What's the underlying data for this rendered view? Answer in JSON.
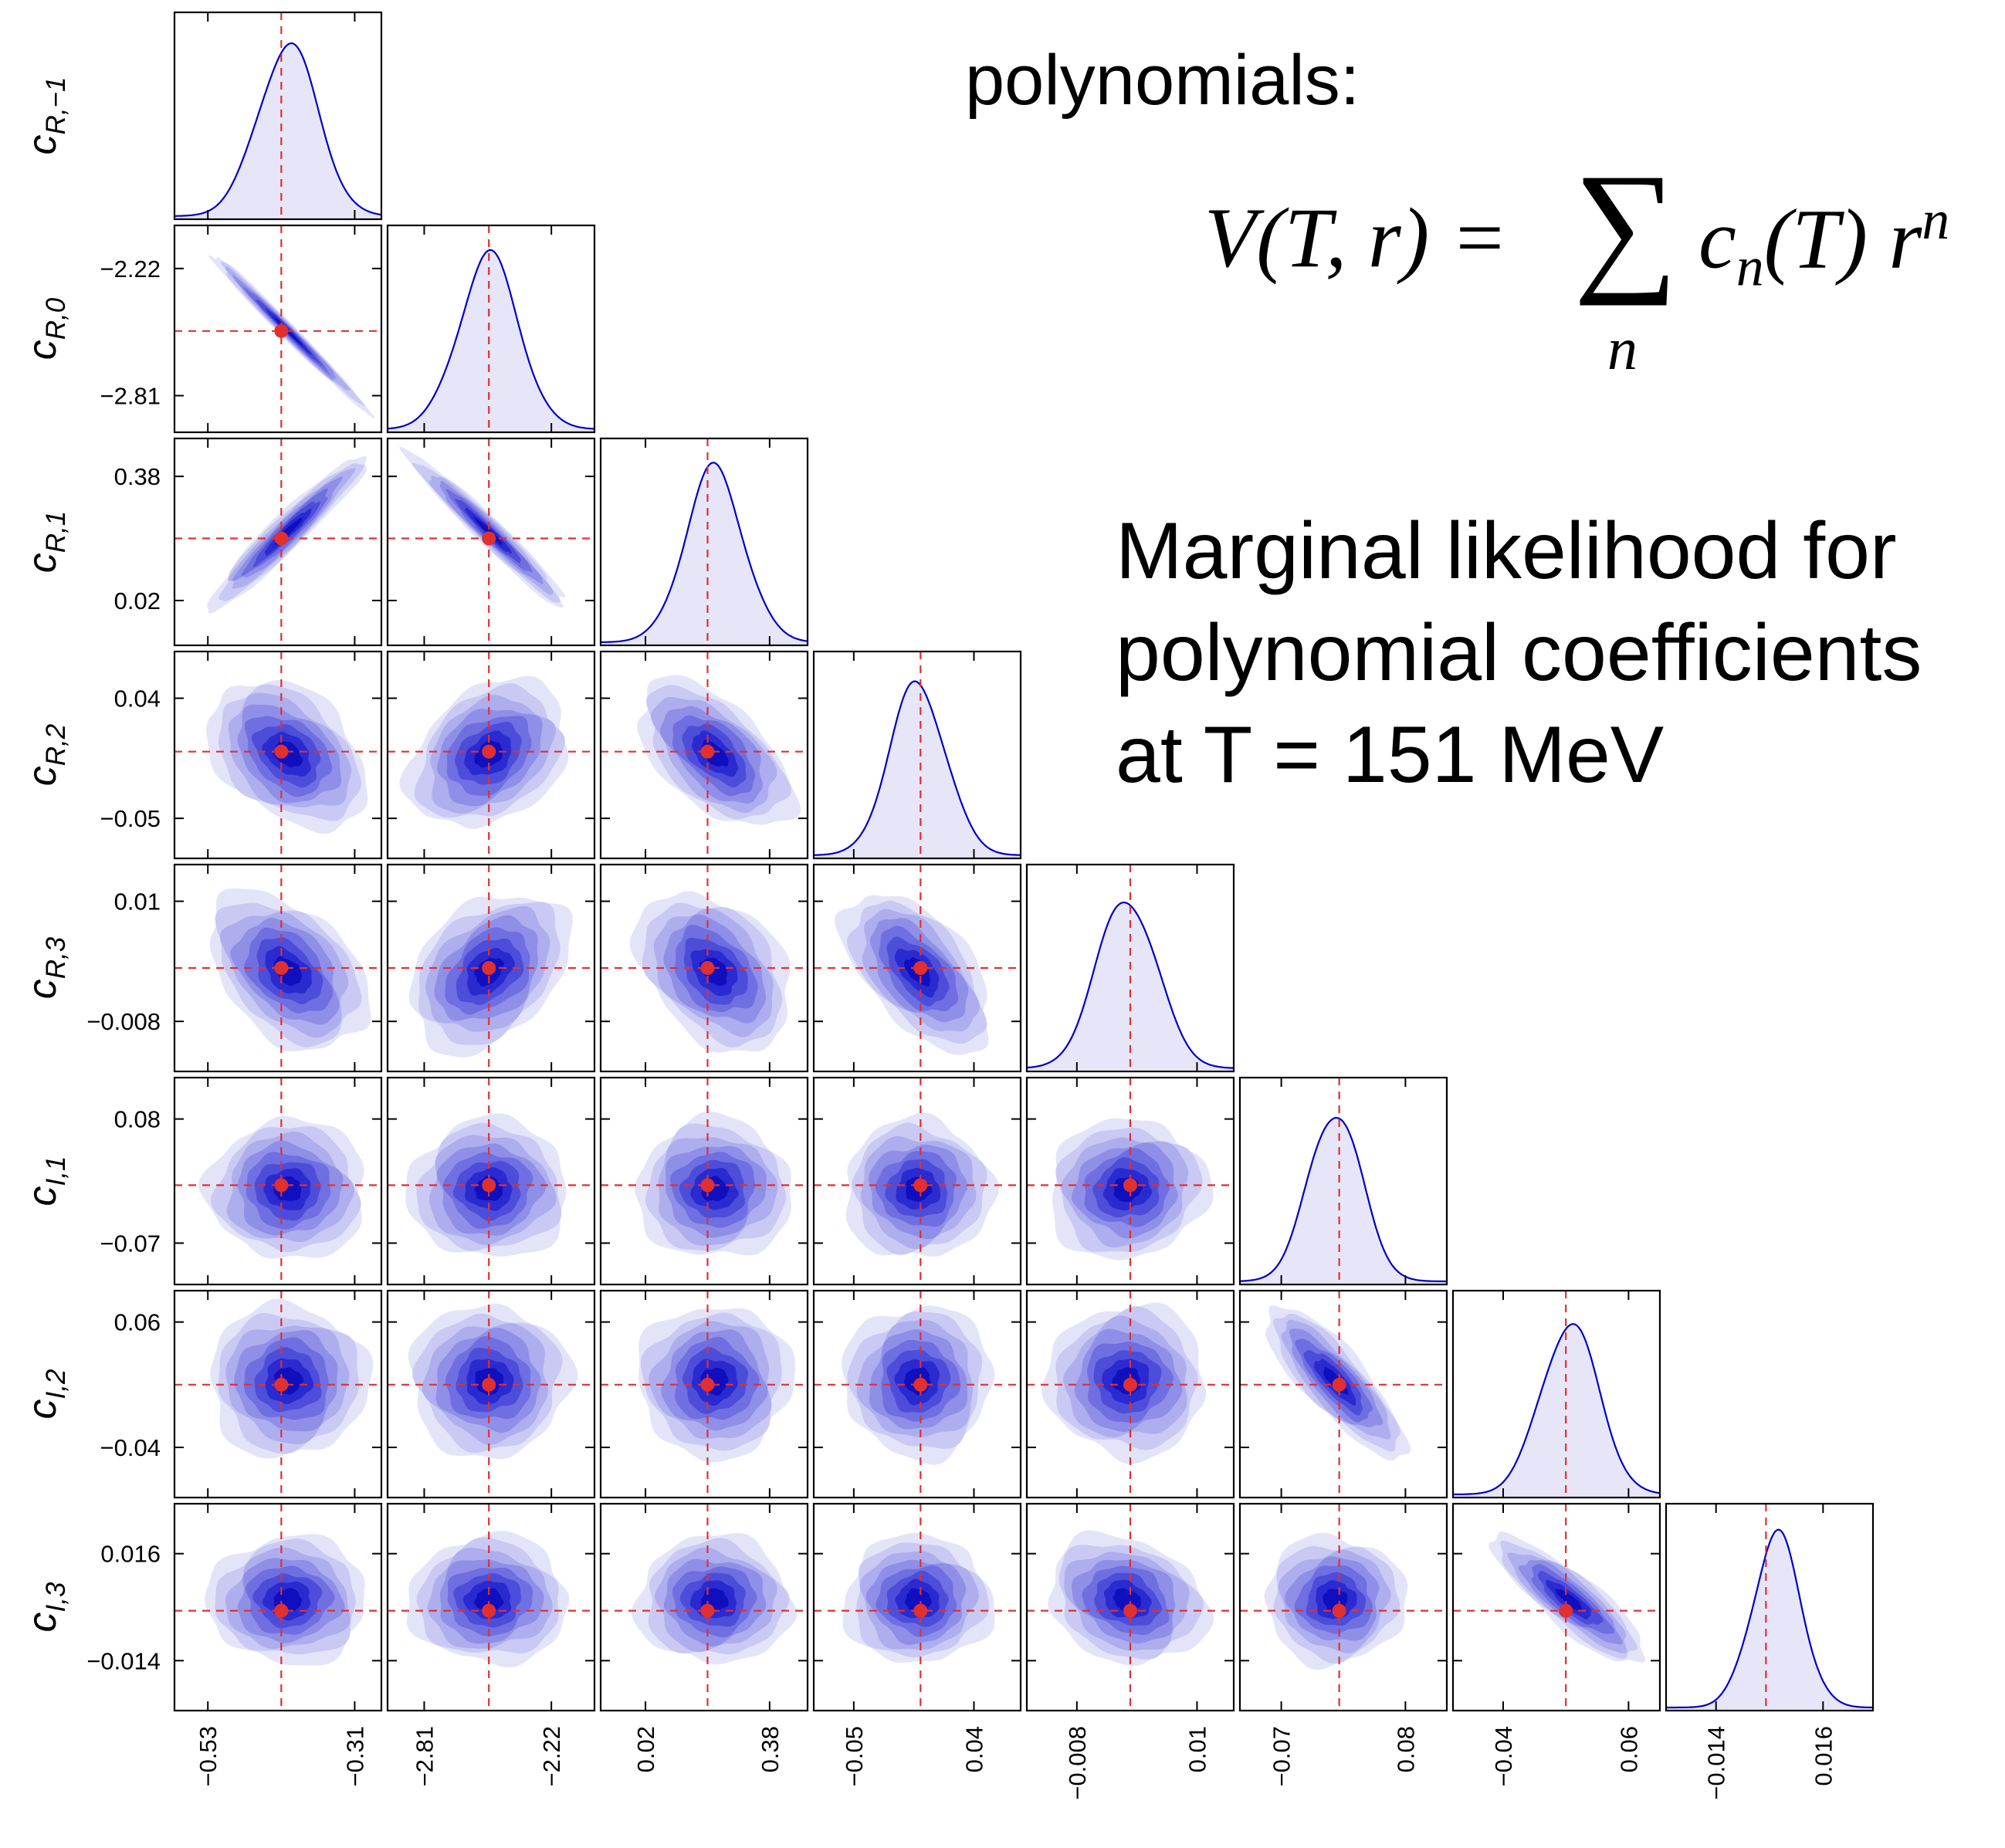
{
  "header": {
    "polynomials_label": "polynomials:",
    "formula": {
      "lhs": "V(T, r) =",
      "sigma": "∑",
      "sum_index": "n",
      "rhs": "c",
      "rhs_sub": "n",
      "rhs_tail": "(T) r",
      "rhs_sup": "n"
    },
    "description_lines": [
      "Marginal likelihood for",
      "polynomial coefficients",
      "at T = 151 MeV"
    ]
  },
  "colors": {
    "density_line": "#0000c8",
    "density_fill": "#e6e6f8",
    "contour_levels": [
      "#e4e4f9",
      "#c9c9f3",
      "#aeaeee",
      "#8f8fe8",
      "#6f6fe2",
      "#4d4dda",
      "#2a2ad0",
      "#0f0fc0"
    ],
    "truth_line": "#e03030",
    "truth_point": "#e03030",
    "frame": "#000000"
  },
  "chart_data": {
    "type": "corner",
    "description": "Corner plot of posterior samples: 1D marginal densities on the diagonal, 2D density contours below the diagonal, with truth values marked by red dashed lines and red points.",
    "parameters": [
      {
        "label": "c",
        "sub": "R,−1",
        "range": [
          -0.58,
          -0.27
        ],
        "ticks": [
          {
            "value": -0.53,
            "label": "−0.53"
          },
          {
            "value": -0.31,
            "label": "−0.31"
          }
        ],
        "truth": -0.42,
        "corr_sign": null
      },
      {
        "label": "c",
        "sub": "R,0",
        "range": [
          -2.98,
          -2.02
        ],
        "ticks": [
          {
            "value": -2.81,
            "label": "−2.81"
          },
          {
            "value": -2.22,
            "label": "−2.22"
          }
        ],
        "truth": -2.51
      },
      {
        "label": "c",
        "sub": "R,1",
        "range": [
          -0.11,
          0.49
        ],
        "ticks": [
          {
            "value": 0.02,
            "label": "0.02"
          },
          {
            "value": 0.38,
            "label": "0.38"
          }
        ],
        "truth": 0.2
      },
      {
        "label": "c",
        "sub": "R,2",
        "range": [
          -0.08,
          0.075
        ],
        "ticks": [
          {
            "value": -0.05,
            "label": "−0.05"
          },
          {
            "value": 0.04,
            "label": "0.04"
          }
        ],
        "truth": 0.0
      },
      {
        "label": "c",
        "sub": "R,3",
        "range": [
          -0.0155,
          0.0155
        ],
        "ticks": [
          {
            "value": -0.008,
            "label": "−0.008"
          },
          {
            "value": 0.01,
            "label": "0.01"
          }
        ],
        "truth": 0.0
      },
      {
        "label": "c",
        "sub": "I,1",
        "range": [
          -0.12,
          0.13
        ],
        "ticks": [
          {
            "value": -0.07,
            "label": "−0.07"
          },
          {
            "value": 0.08,
            "label": "0.08"
          }
        ],
        "truth": 0.0
      },
      {
        "label": "c",
        "sub": "I,2",
        "range": [
          -0.08,
          0.085
        ],
        "ticks": [
          {
            "value": -0.04,
            "label": "−0.04"
          },
          {
            "value": 0.06,
            "label": "0.06"
          }
        ],
        "truth": 0.01
      },
      {
        "label": "c",
        "sub": "I,3",
        "range": [
          -0.028,
          0.03
        ],
        "ticks": [
          {
            "value": -0.014,
            "label": "−0.014"
          },
          {
            "value": 0.016,
            "label": "0.016"
          }
        ],
        "truth": 0.0
      }
    ],
    "marginals": [
      {
        "param": 0,
        "mean": -0.41,
        "sd": 0.045
      },
      {
        "param": 1,
        "mean": -2.51,
        "sd": 0.14
      },
      {
        "param": 2,
        "mean": 0.22,
        "sd": 0.085
      },
      {
        "param": 3,
        "mean": -0.002,
        "sd": 0.021
      },
      {
        "param": 4,
        "mean": -0.0005,
        "sd": 0.0045
      },
      {
        "param": 5,
        "mean": -0.005,
        "sd": 0.032
      },
      {
        "param": 6,
        "mean": 0.013,
        "sd": 0.023
      },
      {
        "param": 7,
        "mean": 0.003,
        "sd": 0.0068
      }
    ],
    "correlations": [
      {
        "row": 1,
        "col": 0,
        "rho": -0.99
      },
      {
        "row": 2,
        "col": 0,
        "rho": 0.95
      },
      {
        "row": 2,
        "col": 1,
        "rho": -0.97
      },
      {
        "row": 3,
        "col": 0,
        "rho": -0.35
      },
      {
        "row": 3,
        "col": 1,
        "rho": 0.3
      },
      {
        "row": 3,
        "col": 2,
        "rho": -0.55
      },
      {
        "row": 4,
        "col": 0,
        "rho": -0.4
      },
      {
        "row": 4,
        "col": 1,
        "rho": 0.35
      },
      {
        "row": 4,
        "col": 2,
        "rho": -0.35
      },
      {
        "row": 4,
        "col": 3,
        "rho": -0.55
      },
      {
        "row": 5,
        "col": 0,
        "rho": 0.0
      },
      {
        "row": 5,
        "col": 1,
        "rho": 0.0
      },
      {
        "row": 5,
        "col": 2,
        "rho": 0.0
      },
      {
        "row": 5,
        "col": 3,
        "rho": 0.0
      },
      {
        "row": 5,
        "col": 4,
        "rho": 0.05
      },
      {
        "row": 6,
        "col": 0,
        "rho": 0.0
      },
      {
        "row": 6,
        "col": 1,
        "rho": 0.0
      },
      {
        "row": 6,
        "col": 2,
        "rho": 0.0
      },
      {
        "row": 6,
        "col": 3,
        "rho": 0.0
      },
      {
        "row": 6,
        "col": 4,
        "rho": 0.0
      },
      {
        "row": 6,
        "col": 5,
        "rho": -0.82
      },
      {
        "row": 7,
        "col": 0,
        "rho": 0.0
      },
      {
        "row": 7,
        "col": 1,
        "rho": 0.0
      },
      {
        "row": 7,
        "col": 2,
        "rho": 0.0
      },
      {
        "row": 7,
        "col": 3,
        "rho": 0.0
      },
      {
        "row": 7,
        "col": 4,
        "rho": -0.2
      },
      {
        "row": 7,
        "col": 5,
        "rho": 0.0
      },
      {
        "row": 7,
        "col": 6,
        "rho": -0.85
      }
    ],
    "grid": false,
    "legend": "none"
  }
}
